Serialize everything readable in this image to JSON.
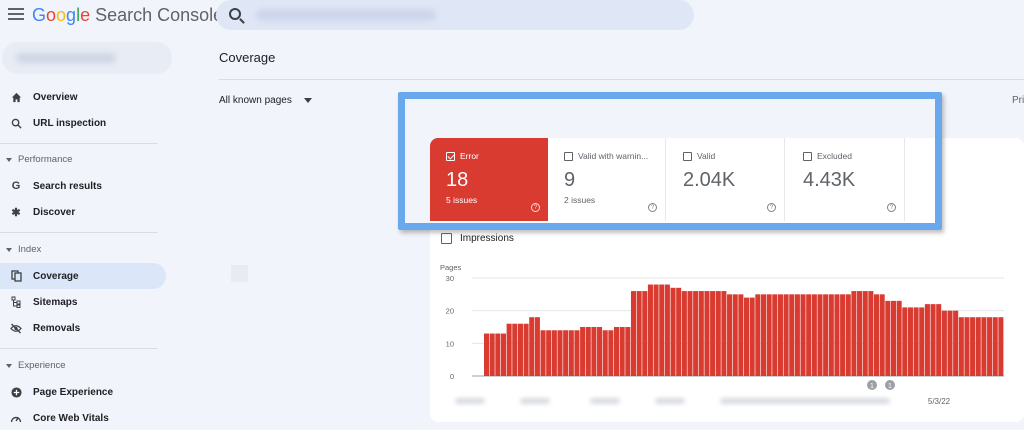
{
  "header": {
    "app_name_google": "Google",
    "app_name_rest": "Search Console",
    "search_value": ""
  },
  "sidebar": {
    "items": [
      {
        "label": "Overview",
        "icon": "home-icon"
      },
      {
        "label": "URL inspection",
        "icon": "search-icon"
      }
    ],
    "sections": [
      {
        "title": "Performance",
        "items": [
          {
            "label": "Search results",
            "icon": "google-g-icon"
          },
          {
            "label": "Discover",
            "icon": "asterisk-icon"
          }
        ]
      },
      {
        "title": "Index",
        "items": [
          {
            "label": "Coverage",
            "icon": "copy-pages-icon",
            "active": true
          },
          {
            "label": "Sitemaps",
            "icon": "sitemap-icon"
          },
          {
            "label": "Removals",
            "icon": "eye-off-icon"
          }
        ]
      },
      {
        "title": "Experience",
        "items": [
          {
            "label": "Page Experience",
            "icon": "plus-circle-icon"
          },
          {
            "label": "Core Web Vitals",
            "icon": "gauge-icon"
          }
        ]
      }
    ]
  },
  "main": {
    "title": "Coverage",
    "filter_label": "All known pages",
    "right_cutoff": "Pri",
    "tiles": [
      {
        "label": "Error",
        "value": "18",
        "sub": "5 issues",
        "checked": true
      },
      {
        "label": "Valid with warnin...",
        "value": "9",
        "sub": "2 issues",
        "checked": false
      },
      {
        "label": "Valid",
        "value": "2.04K",
        "sub": "",
        "checked": false
      },
      {
        "label": "Excluded",
        "value": "4.43K",
        "sub": "",
        "checked": false
      }
    ],
    "impressions_label": "Impressions"
  },
  "colors": {
    "error_red": "#d93b31",
    "highlight_blue": "#6aa8ee",
    "active_nav": "#dbe6f9"
  },
  "chart_data": {
    "type": "bar",
    "ylabel": "Pages",
    "ylim": [
      0,
      30
    ],
    "yticks": [
      0,
      10,
      20,
      30
    ],
    "xtick_label": "5/3/22",
    "values": [
      13,
      13,
      13,
      13,
      16,
      16,
      16,
      16,
      18,
      18,
      14,
      14,
      14,
      14,
      14,
      14,
      14,
      15,
      15,
      15,
      15,
      14,
      14,
      15,
      15,
      15,
      26,
      26,
      26,
      28,
      28,
      28,
      28,
      27,
      27,
      26,
      26,
      26,
      26,
      26,
      26,
      26,
      26,
      25,
      25,
      25,
      24,
      24,
      25,
      25,
      25,
      25,
      25,
      25,
      25,
      25,
      25,
      25,
      25,
      25,
      25,
      25,
      25,
      25,
      25,
      26,
      26,
      26,
      26,
      25,
      25,
      23,
      23,
      23,
      21,
      21,
      21,
      21,
      22,
      22,
      22,
      20,
      20,
      20,
      18,
      18,
      18,
      18,
      18,
      18,
      18,
      18
    ],
    "annotations": [
      "1",
      "1"
    ]
  }
}
